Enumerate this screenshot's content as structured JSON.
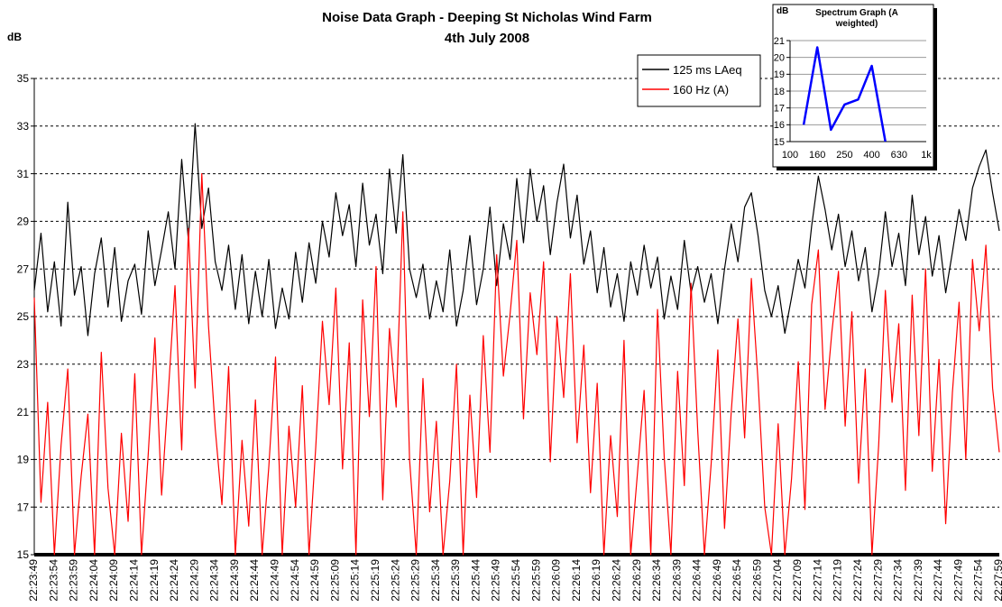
{
  "chart_data": [
    {
      "type": "line",
      "title": "Noise Data Graph - Deeping St Nicholas Wind Farm",
      "subtitle": "4th July 2008",
      "y_label": "dB",
      "categories": [
        "22:23:49",
        null,
        null,
        "22:23:54",
        null,
        null,
        "22:23:59",
        null,
        null,
        "22:24:04",
        null,
        null,
        "22:24:09",
        null,
        null,
        "22:24:14",
        null,
        null,
        "22:24:19",
        null,
        null,
        "22:24:24",
        null,
        null,
        "22:24:29",
        null,
        null,
        "22:24:34",
        null,
        null,
        "22:24:39",
        null,
        null,
        "22:24:44",
        null,
        null,
        "22:24:49",
        null,
        null,
        "22:24:54",
        null,
        null,
        "22:24:59",
        null,
        null,
        "22:25:09",
        null,
        null,
        "22:25:14",
        null,
        null,
        "22:25:19",
        null,
        null,
        "22:25:24",
        null,
        null,
        "22:25:29",
        null,
        null,
        "22:25:34",
        null,
        null,
        "22:25:39",
        null,
        null,
        "22:25:44",
        null,
        null,
        "22:25:49",
        null,
        null,
        "22:25:54",
        null,
        null,
        "22:25:59",
        null,
        null,
        "22:26:09",
        null,
        null,
        "22:26:14",
        null,
        null,
        "22:26:19",
        null,
        null,
        "22:26:24",
        null,
        null,
        "22:26:29",
        null,
        null,
        "22:26:34",
        null,
        null,
        "22:26:39",
        null,
        null,
        "22:26:44",
        null,
        null,
        "22:26:49",
        null,
        null,
        "22:26:54",
        null,
        null,
        "22:26:59",
        null,
        null,
        "22:27:04",
        null,
        null,
        "22:27:09",
        null,
        null,
        "22:27:14",
        null,
        null,
        "22:27:19",
        null,
        null,
        "22:27:24",
        null,
        null,
        "22:27:29",
        null,
        null,
        "22:27:34",
        null,
        null,
        "22:27:39",
        null,
        null,
        "22:27:44",
        null,
        null,
        "22:27:49",
        null,
        null,
        "22:27:54",
        null,
        null,
        "22:27:59"
      ],
      "series": [
        {
          "name": "125 ms LAeq",
          "color": "#000000",
          "values": [
            26.1,
            28.5,
            25.2,
            27.3,
            24.6,
            29.8,
            25.9,
            27.1,
            24.2,
            26.8,
            28.3,
            25.4,
            27.9,
            24.8,
            26.5,
            27.2,
            25.1,
            28.6,
            26.3,
            27.8,
            29.4,
            27.0,
            31.6,
            28.2,
            33.1,
            28.7,
            30.4,
            27.3,
            26.1,
            28.0,
            25.3,
            27.6,
            24.7,
            26.9,
            25.0,
            27.4,
            24.5,
            26.2,
            24.9,
            27.7,
            25.6,
            28.1,
            26.4,
            29.0,
            27.5,
            30.2,
            28.4,
            29.7,
            27.1,
            30.6,
            28.0,
            29.3,
            26.8,
            31.2,
            28.5,
            31.8,
            27.0,
            25.8,
            27.2,
            24.9,
            26.5,
            25.2,
            27.8,
            24.6,
            26.1,
            28.4,
            25.5,
            27.0,
            29.6,
            26.3,
            28.9,
            27.4,
            30.8,
            28.1,
            31.2,
            29.0,
            30.5,
            27.6,
            29.8,
            31.4,
            28.3,
            30.1,
            27.2,
            28.6,
            26.0,
            27.9,
            25.4,
            26.8,
            24.8,
            27.3,
            25.9,
            28.0,
            26.2,
            27.5,
            24.9,
            26.7,
            25.3,
            28.2,
            26.0,
            27.1,
            25.6,
            26.8,
            24.7,
            27.0,
            28.9,
            27.3,
            29.6,
            30.2,
            28.4,
            26.1,
            25.0,
            26.3,
            24.3,
            25.8,
            27.4,
            26.2,
            28.8,
            30.9,
            29.5,
            27.8,
            29.3,
            27.1,
            28.6,
            26.5,
            27.9,
            25.2,
            26.8,
            29.4,
            27.1,
            28.5,
            26.3,
            30.1,
            27.6,
            29.2,
            26.7,
            28.4,
            26.0,
            27.7,
            29.5,
            28.2,
            30.4,
            31.3,
            32.0,
            30.2,
            28.6
          ]
        },
        {
          "name": "160 Hz (A)",
          "color": "#ff0000",
          "values": [
            25.8,
            17.2,
            21.4,
            15.0,
            19.6,
            22.8,
            15.0,
            18.3,
            20.9,
            15.0,
            23.5,
            17.8,
            15.0,
            20.1,
            16.4,
            22.6,
            15.0,
            19.2,
            24.1,
            17.5,
            21.8,
            26.3,
            19.4,
            28.7,
            22.0,
            31.0,
            24.6,
            20.3,
            17.1,
            22.9,
            15.0,
            19.8,
            16.2,
            21.5,
            15.0,
            18.7,
            23.3,
            15.0,
            20.4,
            17.0,
            22.1,
            15.0,
            19.5,
            24.8,
            21.3,
            26.2,
            18.6,
            23.9,
            15.0,
            25.7,
            20.8,
            27.1,
            17.3,
            24.5,
            21.2,
            29.4,
            19.0,
            15.0,
            22.4,
            16.8,
            20.6,
            15.0,
            18.1,
            23.0,
            15.0,
            21.7,
            17.4,
            24.2,
            19.3,
            27.6,
            22.5,
            25.1,
            28.2,
            20.7,
            26.0,
            23.4,
            27.3,
            18.9,
            25.0,
            21.6,
            26.8,
            19.7,
            23.8,
            17.6,
            22.2,
            15.0,
            20.0,
            16.6,
            24.0,
            15.0,
            18.4,
            21.9,
            15.0,
            25.3,
            19.1,
            15.0,
            22.7,
            17.9,
            26.4,
            20.2,
            15.0,
            18.8,
            23.6,
            16.1,
            21.0,
            24.9,
            19.9,
            26.6,
            22.3,
            17.0,
            15.0,
            20.5,
            15.0,
            18.2,
            23.1,
            16.9,
            25.5,
            27.8,
            21.1,
            24.3,
            26.9,
            20.4,
            25.2,
            18.0,
            22.8,
            15.0,
            19.6,
            26.1,
            21.4,
            24.7,
            17.7,
            25.9,
            20.0,
            27.0,
            18.5,
            23.2,
            16.3,
            21.8,
            25.6,
            19.0,
            27.4,
            24.4,
            28.0,
            22.0,
            19.3
          ]
        }
      ],
      "ylim": [
        15,
        35
      ],
      "yticks": [
        15,
        17,
        19,
        21,
        23,
        25,
        27,
        29,
        31,
        33,
        35
      ],
      "grid": true
    },
    {
      "type": "line",
      "title": "Spectrum Graph (A weighted)",
      "y_label": "dB",
      "categories": [
        "100",
        null,
        "160",
        null,
        "250",
        null,
        "400",
        null,
        "630",
        null,
        "1k"
      ],
      "values": [
        null,
        16,
        20.6,
        15.7,
        17.2,
        17.5,
        19.5,
        15,
        null,
        null,
        null
      ],
      "color": "#0000ff",
      "ylim": [
        15,
        21
      ],
      "yticks": [
        15,
        16,
        17,
        18,
        19,
        20,
        21
      ],
      "grid": true
    }
  ]
}
